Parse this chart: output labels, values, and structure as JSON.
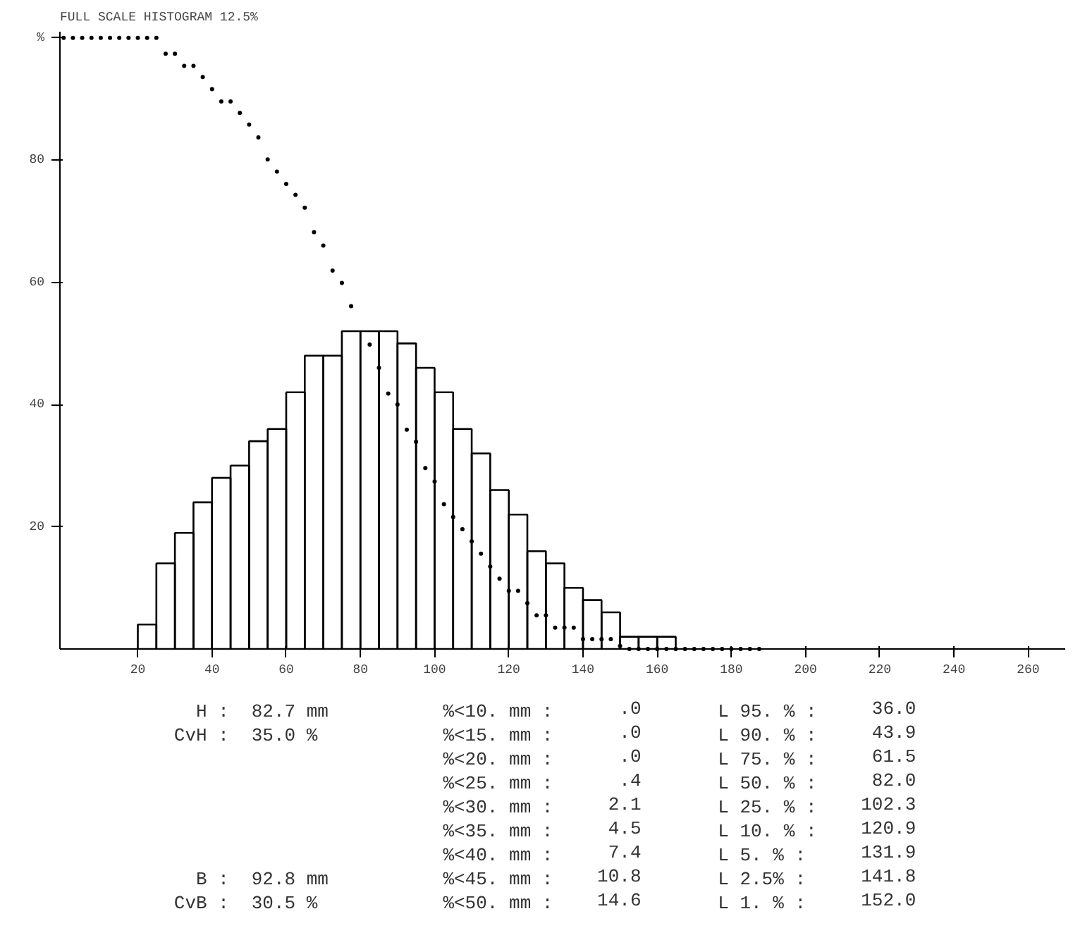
{
  "chart_data": {
    "type": "histogram",
    "title": "FULL SCALE HISTOGRAM 12.5%",
    "bins": [
      20,
      25,
      30,
      35,
      40,
      45,
      50,
      55,
      60,
      65,
      70,
      75,
      80,
      85,
      90,
      95,
      100,
      105,
      110,
      115,
      120,
      125,
      130,
      135,
      140,
      145,
      150,
      155,
      160,
      165
    ],
    "values": [
      4,
      14,
      19,
      24,
      28,
      30,
      34,
      36,
      42,
      48,
      48,
      52,
      52,
      52,
      50,
      46,
      42,
      36,
      32,
      26,
      22,
      16,
      14,
      10,
      8,
      6,
      2,
      2,
      2
    ],
    "color": "#000000",
    "series": [
      {
        "type": "scatter",
        "color": "#000000",
        "x": [
          0,
          2.5,
          5,
          7.5,
          10,
          12.5,
          15,
          17.5,
          20,
          22.5,
          25,
          27.5,
          30,
          32.5,
          35,
          37.5,
          40,
          42.5,
          45,
          47.5,
          50,
          52.5,
          55,
          57.5,
          60,
          62.5,
          65,
          67.5,
          70,
          72.5,
          75,
          77.5,
          80,
          82.5,
          85,
          87.5,
          90,
          92.5,
          95,
          97.5,
          100,
          102.5,
          105,
          107.5,
          110,
          112.5,
          115,
          117.5,
          120,
          122.5,
          125,
          127.5,
          130,
          132.5,
          135,
          137.5,
          140,
          142.5,
          145,
          147.5,
          150,
          152.5,
          155,
          157.5,
          160,
          162.5,
          165,
          167.5,
          170,
          172.5,
          175,
          177.5,
          180,
          182.5,
          185,
          187.5
        ],
        "values": [
          100,
          100,
          100,
          100,
          100,
          100,
          100,
          100,
          100,
          100,
          100,
          97.4,
          97.4,
          95.4,
          95.4,
          93.6,
          91.6,
          89.6,
          89.6,
          87.7,
          85.8,
          83.7,
          80.1,
          78.1,
          76.1,
          74.3,
          72.2,
          68.2,
          66.0,
          61.9,
          59.9,
          56.1,
          null,
          49.8,
          46.0,
          41.8,
          40.0,
          35.9,
          33.9,
          29.6,
          27.4,
          23.7,
          21.6,
          19.6,
          17.6,
          15.6,
          13.5,
          11.5,
          9.5,
          9.5,
          7.5,
          5.5,
          5.5,
          3.5,
          3.5,
          3.5,
          1.6,
          1.6,
          1.6,
          1.6,
          0.5,
          0,
          0,
          0,
          0,
          0,
          0,
          0,
          0,
          0,
          0,
          0,
          0,
          0,
          0,
          0
        ]
      }
    ],
    "xlim": [
      -1,
      270
    ],
    "ylim": [
      0,
      101
    ],
    "xticks": [
      20,
      40,
      60,
      80,
      100,
      120,
      140,
      160,
      180,
      200,
      220,
      240,
      260
    ],
    "yticks": [
      20,
      40,
      60,
      80,
      {
        "value": 100,
        "label": "%"
      }
    ],
    "marker": "circle",
    "grid": false,
    "annotations": [
      "H :",
      "82.7 mm",
      "CvH :",
      "35.0 %",
      "B :",
      "92.8 mm",
      "CvB :",
      "30.5 %",
      "%<10. mm :",
      ".0",
      "%<15. mm :",
      ".0",
      "%<20. mm :",
      ".0",
      "%<25. mm :",
      ".4",
      "%<30. mm :",
      "2.1",
      "%<35. mm :",
      "4.5",
      "%<40. mm :",
      "7.4",
      "%<45. mm :",
      "10.8",
      "%<50. mm :",
      "14.6",
      "L 95. % :",
      "36.0",
      "L 90. % :",
      "43.9",
      "L 75. % :",
      "61.5",
      "L 50. % :",
      "82.0",
      "L 25. % :",
      "102.3",
      "L 10. % :",
      "120.9",
      "L  5. % :",
      "131.9",
      "L 2.5% :",
      "141.8",
      "L  1. % :",
      "152.0"
    ]
  }
}
